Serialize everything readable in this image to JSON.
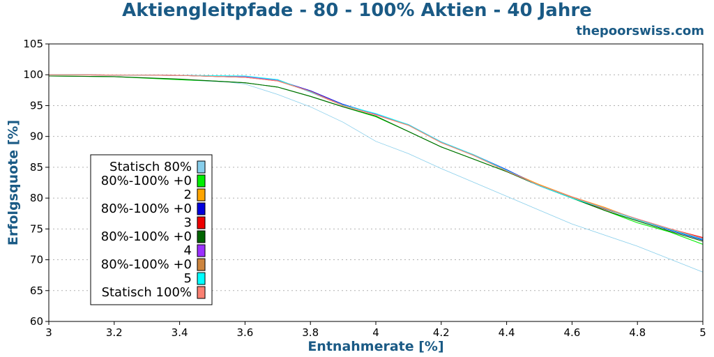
{
  "header": {
    "title": "Aktiengleitpfade - 80 - 100% Aktien - 40 Jahre",
    "site": "thepoorswiss.com"
  },
  "chart_data": {
    "type": "line",
    "title": "Aktiengleitpfade - 80 - 100% Aktien - 40 Jahre",
    "xlabel": "Entnahmerate [%]",
    "ylabel": "Erfolgsquote [%]",
    "xlim": [
      3,
      5
    ],
    "ylim": [
      60,
      105
    ],
    "xticks": [
      "3",
      "3.2",
      "3.4",
      "3.6",
      "3.8",
      "4",
      "4.2",
      "4.4",
      "4.6",
      "4.8",
      "5"
    ],
    "yticks": [
      "60",
      "65",
      "70",
      "75",
      "80",
      "85",
      "90",
      "95",
      "100",
      "105"
    ],
    "grid": true,
    "legend_position": "left",
    "legend_labels": [
      "Statisch 80%",
      "80%-100% +0",
      "2",
      "80%-100% +0",
      "3",
      "80%-100% +0",
      "4",
      "80%-100% +0",
      "5",
      "Statisch 100%"
    ],
    "legend_colors": [
      "#87ceeb",
      "#00ee00",
      "#ffa500",
      "#0000dd",
      "#ee0000",
      "#006400",
      "#9b30ff",
      "#cd853f",
      "#00ffff",
      "#fa8072"
    ],
    "series": [
      {
        "color": "#87ceeb",
        "x": [
          3,
          3.2,
          3.4,
          3.55,
          3.6,
          3.7,
          3.8,
          3.9,
          4.0,
          4.1,
          4.2,
          4.4,
          4.6,
          4.8,
          5.0
        ],
        "y": [
          99.8,
          99.7,
          99.2,
          98.8,
          98.5,
          96.8,
          94.8,
          92.3,
          89.2,
          87.2,
          84.8,
          80.3,
          75.8,
          72.2,
          68.0
        ]
      },
      {
        "color": "#00ee00",
        "x": [
          3,
          3.2,
          3.4,
          3.5,
          3.6,
          3.7,
          3.8,
          3.9,
          4.0,
          4.1,
          4.2,
          4.3,
          4.4,
          4.5,
          4.6,
          4.7,
          4.8,
          4.9,
          5.0
        ],
        "y": [
          99.8,
          99.7,
          99.2,
          99.0,
          98.7,
          98.0,
          96.5,
          94.8,
          93.2,
          90.8,
          88.3,
          86.3,
          84.3,
          82.2,
          80.0,
          78.0,
          76.0,
          74.5,
          72.5
        ]
      },
      {
        "color": "#ffa500",
        "x": [
          3,
          3.4,
          3.6,
          3.7,
          3.8,
          3.9,
          4.0,
          4.1,
          4.2,
          4.3,
          4.4,
          4.5,
          4.6,
          4.7,
          4.8,
          4.9,
          5.0
        ],
        "y": [
          100,
          99.9,
          99.6,
          99.0,
          97.3,
          95.0,
          93.5,
          91.8,
          89.0,
          87.0,
          84.5,
          82.2,
          80.2,
          78.5,
          76.5,
          75.0,
          73.5
        ]
      },
      {
        "color": "#0000dd",
        "x": [
          3,
          3.4,
          3.6,
          3.7,
          3.8,
          3.9,
          4.0,
          4.1,
          4.2,
          4.3,
          4.4,
          4.5,
          4.6,
          4.7,
          4.8,
          4.9,
          5.0
        ],
        "y": [
          100,
          99.9,
          99.6,
          99.1,
          97.4,
          95.2,
          93.6,
          91.9,
          89.1,
          87.0,
          84.6,
          82.0,
          80.0,
          78.3,
          76.5,
          74.8,
          73.2
        ]
      },
      {
        "color": "#ee0000",
        "x": [
          3,
          3.4,
          3.6,
          3.7,
          3.8,
          3.9,
          4.0,
          4.1,
          4.2,
          4.3,
          4.4,
          4.5,
          4.6,
          4.7,
          4.8,
          4.9,
          5.0
        ],
        "y": [
          100,
          99.9,
          99.7,
          99.2,
          97.2,
          95.0,
          93.6,
          91.9,
          89.0,
          87.0,
          84.4,
          82.0,
          80.0,
          78.2,
          76.6,
          75.0,
          73.6
        ]
      },
      {
        "color": "#006400",
        "x": [
          3,
          3.2,
          3.4,
          3.5,
          3.6,
          3.7,
          3.8,
          3.9,
          4.0,
          4.1,
          4.2,
          4.3,
          4.4,
          4.5,
          4.6,
          4.7,
          4.8,
          4.9,
          5.0
        ],
        "y": [
          99.8,
          99.7,
          99.3,
          99.0,
          98.7,
          98.0,
          96.5,
          94.8,
          93.3,
          90.8,
          88.3,
          86.3,
          84.3,
          82.0,
          80.0,
          78.0,
          76.3,
          74.6,
          73.0
        ]
      },
      {
        "color": "#9b30ff",
        "x": [
          3,
          3.4,
          3.6,
          3.7,
          3.8,
          3.9,
          4.0,
          4.1,
          4.2,
          4.3,
          4.4,
          4.5,
          4.6,
          4.7,
          4.8,
          4.9,
          5.0
        ],
        "y": [
          100,
          99.9,
          99.7,
          99.1,
          97.3,
          95.1,
          93.6,
          91.9,
          89.1,
          86.9,
          84.5,
          82.0,
          80.1,
          78.3,
          76.6,
          75.0,
          73.4
        ]
      },
      {
        "color": "#cd853f",
        "x": [
          3,
          3.4,
          3.6,
          3.7,
          3.8,
          3.9,
          4.0,
          4.1,
          4.2,
          4.3,
          4.4,
          4.5,
          4.6,
          4.7,
          4.8,
          4.9,
          5.0
        ],
        "y": [
          100,
          99.9,
          99.6,
          99.0,
          97.3,
          95.0,
          93.5,
          91.8,
          89.0,
          86.9,
          84.4,
          82.1,
          80.1,
          78.4,
          76.5,
          74.9,
          73.3
        ]
      },
      {
        "color": "#00ffff",
        "x": [
          3,
          3.4,
          3.6,
          3.7,
          3.8,
          3.9,
          4.0,
          4.1,
          4.2,
          4.3,
          4.4,
          4.5,
          4.6,
          4.7,
          4.8,
          4.9,
          5.0
        ],
        "y": [
          100,
          99.9,
          99.8,
          99.2,
          97.2,
          95.1,
          93.7,
          91.9,
          89.1,
          87.0,
          84.5,
          82.0,
          80.0,
          78.3,
          76.5,
          74.9,
          73.3
        ]
      },
      {
        "color": "#fa8072",
        "x": [
          3,
          3.4,
          3.6,
          3.7,
          3.8,
          3.9,
          4.0,
          4.1,
          4.2,
          4.3,
          4.4,
          4.5,
          4.6,
          4.7,
          4.8,
          4.9,
          5.0
        ],
        "y": [
          100,
          99.9,
          99.6,
          99.0,
          97.3,
          95.0,
          93.5,
          91.8,
          89.0,
          86.9,
          84.4,
          82.1,
          80.2,
          78.4,
          76.6,
          75.0,
          73.5
        ]
      }
    ]
  }
}
